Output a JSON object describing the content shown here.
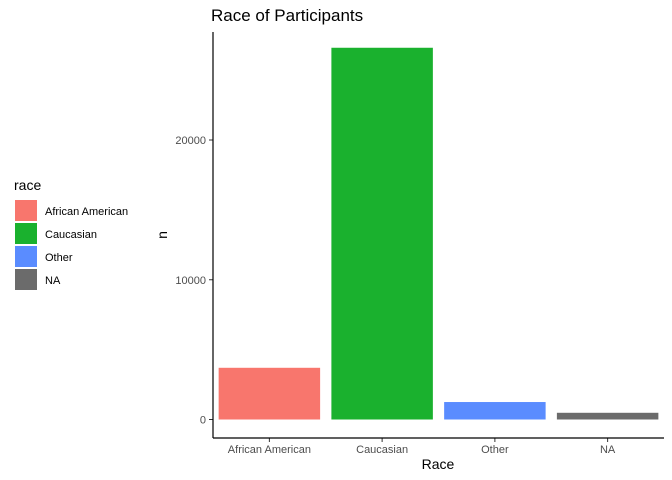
{
  "chart_data": {
    "type": "bar",
    "title": "Race of Participants",
    "xlabel": "Race",
    "ylabel": "n",
    "categories": [
      "African American",
      "Caucasian",
      "Other",
      "NA"
    ],
    "values": [
      3700,
      26600,
      1250,
      480
    ],
    "colors": [
      "#F8766D",
      "#1AB12E",
      "#5A8CFF",
      "#6B6B6B"
    ],
    "ylim": [
      0,
      28000
    ],
    "yticks": [
      0,
      10000,
      20000
    ],
    "ytick_labels": [
      "0",
      "10000",
      "20000"
    ],
    "grid": false,
    "legend": {
      "title": "race",
      "position": "left",
      "entries": [
        "African American",
        "Caucasian",
        "Other",
        "NA"
      ]
    }
  }
}
